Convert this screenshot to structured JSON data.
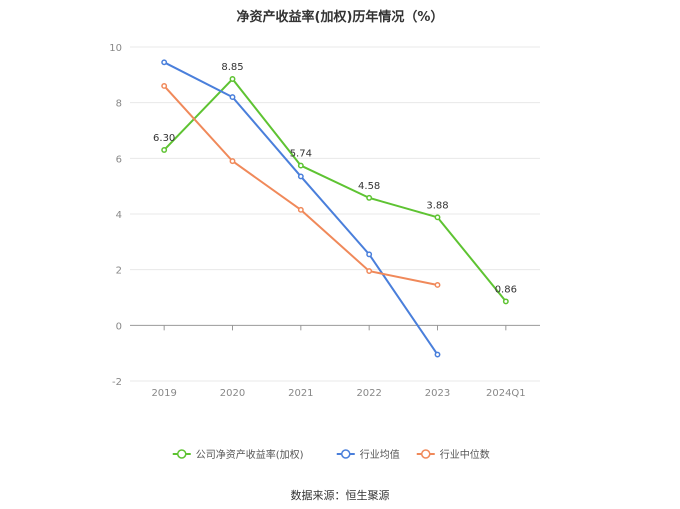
{
  "chart_data": {
    "type": "line",
    "title": "净资产收益率(加权)历年情况（%）",
    "categories": [
      "2019",
      "2020",
      "2021",
      "2022",
      "2023",
      "2024Q1"
    ],
    "ylim": [
      -2,
      10
    ],
    "yticks": [
      -2,
      0,
      2,
      4,
      6,
      8,
      10
    ],
    "grid": true,
    "legend_position": "bottom",
    "series": [
      {
        "name": "公司净资产收益率(加权)",
        "color": "#5ec332",
        "values": [
          6.3,
          8.85,
          5.74,
          4.58,
          3.88,
          0.86
        ],
        "labels": [
          "6.30",
          "8.85",
          "5.74",
          "4.58",
          "3.88",
          "0.86"
        ]
      },
      {
        "name": "行业均值",
        "color": "#4a7fdb",
        "values": [
          9.45,
          8.2,
          5.35,
          2.55,
          -1.05,
          null
        ]
      },
      {
        "name": "行业中位数",
        "color": "#f0895a",
        "values": [
          8.6,
          5.9,
          4.15,
          1.95,
          1.45,
          null
        ]
      }
    ]
  },
  "source": "数据来源：恒生聚源"
}
